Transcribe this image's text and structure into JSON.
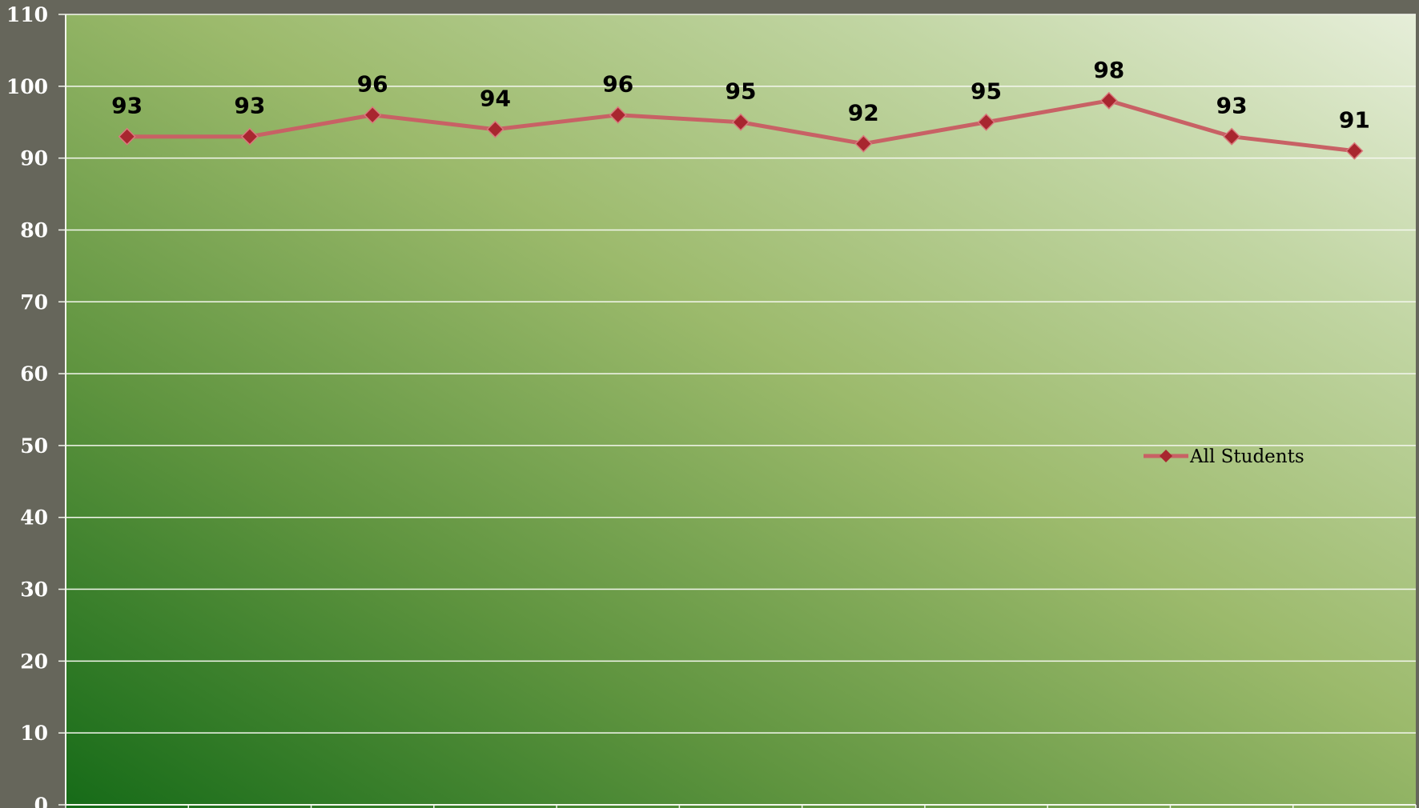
{
  "chart_data": {
    "type": "line",
    "title": "",
    "xlabel": "",
    "ylabel": "",
    "ylim": [
      0,
      110
    ],
    "ytick_step": 10,
    "y_ticks": [
      "0",
      "10",
      "20",
      "30",
      "40",
      "50",
      "60",
      "70",
      "80",
      "90",
      "100",
      "110"
    ],
    "grid": true,
    "legend_position": "right",
    "series": [
      {
        "name": "All Students",
        "color": "#c86165",
        "marker_color": "#a8262f",
        "marker": "diamond",
        "values": [
          93,
          93,
          96,
          94,
          96,
          95,
          92,
          95,
          98,
          93,
          91
        ]
      }
    ]
  }
}
